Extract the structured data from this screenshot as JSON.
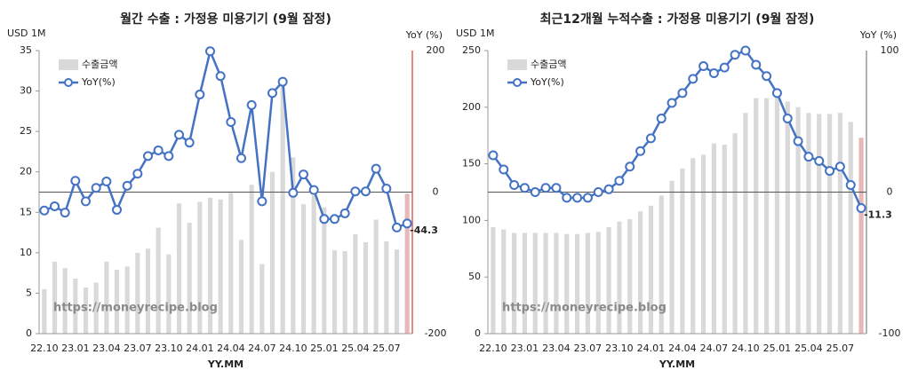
{
  "chart_data": [
    {
      "type": "combo",
      "title": "월간 수출 : 가정용 미용기기 (9월 잠정)",
      "y_label": "USD 1M",
      "y2_label": "YoY (%)",
      "x_label": "YY.MM",
      "annotation": "https://moneyrecipe.blog",
      "categories": [
        "22.10",
        null,
        null,
        "23.01",
        null,
        null,
        "23.04",
        null,
        null,
        "23.07",
        null,
        null,
        "23.10",
        null,
        null,
        "24.01",
        null,
        null,
        "24.04",
        null,
        null,
        "24.07",
        null,
        null,
        "24.10",
        null,
        null,
        "25.01",
        null,
        null,
        "25.04",
        null,
        null,
        "25.07",
        null,
        null
      ],
      "ylim": [
        0,
        35
      ],
      "yticks": [
        0,
        5,
        10,
        15,
        20,
        25,
        30,
        35
      ],
      "y2lim": [
        -200,
        200
      ],
      "y2ticks": [
        -200,
        0,
        200
      ],
      "zero_line": true,
      "right_axis_color": "#e06060",
      "series": [
        {
          "name": "수출금액",
          "type": "bar",
          "color": "#d9d9d9",
          "highlight_color": "#e6b8b7",
          "values": [
            5.5,
            8.9,
            8.1,
            6.8,
            5.7,
            6.3,
            8.9,
            7.9,
            8.3,
            10.0,
            10.5,
            13.1,
            9.8,
            16.1,
            13.7,
            16.3,
            16.8,
            16.6,
            17.4,
            11.6,
            18.4,
            8.6,
            20.0,
            31.4,
            21.8,
            16.0,
            17.1,
            15.6,
            10.3,
            10.2,
            12.3,
            11.3,
            14.1,
            11.4,
            10.4,
            17.3
          ]
        },
        {
          "name": "YoY(%)",
          "type": "line",
          "axis": "y2",
          "color": "#4472c4",
          "label_color": "#ff0000",
          "values": [
            -26,
            -20,
            -29,
            16,
            -13,
            6,
            15,
            -25,
            9,
            26,
            51,
            59,
            51,
            81,
            70,
            138,
            199,
            164,
            99,
            48,
            123,
            -13,
            140,
            156,
            -1,
            25,
            3,
            -38,
            -38,
            -30,
            1,
            1,
            33,
            5,
            -50,
            -44.3
          ]
        }
      ]
    },
    {
      "type": "combo",
      "title": "최근12개월 누적수출 : 가정용 미용기기 (9월 잠정)",
      "y_label": "USD 1M",
      "y2_label": "YoY (%)",
      "x_label": "YY.MM",
      "annotation": "https://moneyrecipe.blog",
      "categories": [
        "22.10",
        null,
        null,
        "23.01",
        null,
        null,
        "23.04",
        null,
        null,
        "23.07",
        null,
        null,
        "23.10",
        null,
        null,
        "24.01",
        null,
        null,
        "24.04",
        null,
        null,
        "24.07",
        null,
        null,
        "24.10",
        null,
        null,
        "25.01",
        null,
        null,
        "25.04",
        null,
        null,
        "25.07",
        null,
        null
      ],
      "ylim": [
        0,
        250
      ],
      "yticks": [
        0,
        50,
        100,
        150,
        200,
        250
      ],
      "y2lim": [
        -100,
        100
      ],
      "y2ticks": [
        -100,
        0,
        100
      ],
      "zero_line": true,
      "right_axis_color": "#999999",
      "series": [
        {
          "name": "수출금액",
          "type": "bar",
          "color": "#d9d9d9",
          "highlight_color": "#e6b8b7",
          "values": [
            94,
            92,
            89,
            89,
            89,
            89,
            89,
            88,
            88,
            89,
            90,
            94,
            99,
            101,
            108,
            113,
            122,
            135,
            146,
            155,
            158,
            168,
            167,
            177,
            195,
            208,
            208,
            211,
            205,
            200,
            195,
            194,
            194,
            195,
            187,
            173
          ]
        },
        {
          "name": "YoY(%)",
          "type": "line",
          "axis": "y2",
          "color": "#4472c4",
          "label_color": "#ff0000",
          "values": [
            26,
            16,
            5,
            3,
            0,
            3,
            3,
            -4,
            -4,
            -4,
            0,
            2,
            8,
            18,
            29,
            38,
            52,
            63,
            70,
            80,
            89,
            84,
            88,
            97,
            100,
            90,
            82,
            70,
            52,
            36,
            25,
            22,
            15,
            18,
            5,
            -11.3
          ]
        }
      ]
    }
  ]
}
